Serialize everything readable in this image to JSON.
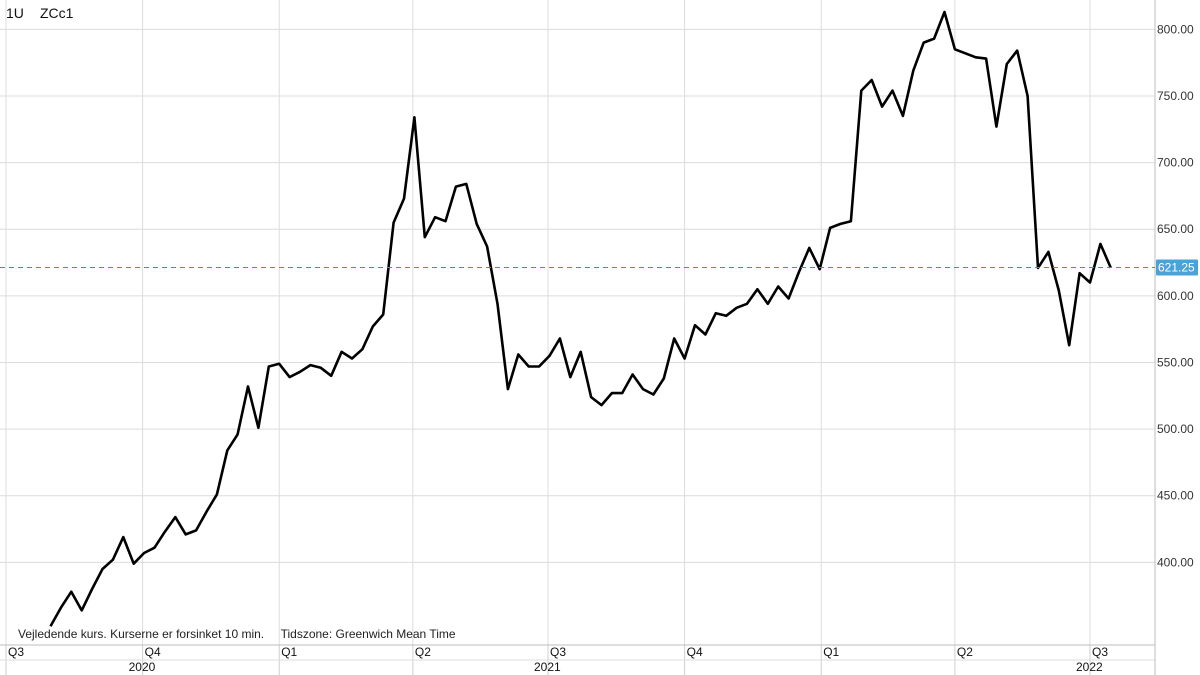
{
  "header": {
    "interval": "1U",
    "symbol": "ZCc1"
  },
  "footer": {
    "notice": "Vejledende kurs. Kurserne er forsinket 10 min.",
    "timezone": "Tidszone: Greenwich Mean Time"
  },
  "colors": {
    "line": "#000000",
    "grid": "#dcdcdc",
    "last_price_line": "#d9534f",
    "last_price_badge": "#4aa3d8"
  },
  "chart_data": {
    "type": "line",
    "symbol": "ZCc1",
    "x_start": "2020-07-31",
    "x_end": "2022-09-09",
    "x_interval": "1 week",
    "y_ticks": [
      400,
      450,
      500,
      550,
      600,
      650,
      700,
      750,
      800
    ],
    "y_tick_labels": [
      "400.00",
      "450.00",
      "500.00",
      "550.00",
      "600.00",
      "650.00",
      "700.00",
      "750.00",
      "800.00"
    ],
    "ylim": [
      338,
      822
    ],
    "last_price": 621.25,
    "last_price_label": "621.25",
    "quarter_ticks": [
      {
        "label": "Q3",
        "date": "2020-07-01"
      },
      {
        "label": "Q4",
        "date": "2020-10-01"
      },
      {
        "label": "Q1",
        "date": "2021-01-01"
      },
      {
        "label": "Q2",
        "date": "2021-04-01"
      },
      {
        "label": "Q3",
        "date": "2021-07-01"
      },
      {
        "label": "Q4",
        "date": "2021-10-01"
      },
      {
        "label": "Q1",
        "date": "2022-01-01"
      },
      {
        "label": "Q2",
        "date": "2022-04-01"
      },
      {
        "label": "Q3",
        "date": "2022-07-01"
      }
    ],
    "year_labels": [
      {
        "label": "2020",
        "date": "2020-10-01"
      },
      {
        "label": "2021",
        "date": "2021-07-01"
      },
      {
        "label": "2022",
        "date": "2022-07-01"
      }
    ],
    "grid": true,
    "legend": "none",
    "values": [
      352,
      366,
      378,
      364,
      380,
      395,
      402,
      419,
      399,
      407,
      411,
      423,
      434,
      421,
      424,
      438,
      451,
      484,
      496,
      532,
      501,
      547,
      549,
      539,
      543,
      548,
      546,
      540,
      558,
      553,
      560,
      577,
      586,
      655,
      673,
      734,
      644,
      659,
      656,
      682,
      684,
      654,
      637,
      594,
      530,
      556,
      547,
      547,
      555,
      568,
      539,
      558,
      524,
      518,
      527,
      527,
      541,
      530,
      526,
      538,
      568,
      553,
      578,
      571,
      587,
      585,
      591,
      594,
      605,
      594,
      607,
      598,
      618,
      636,
      620,
      651,
      654,
      656,
      754,
      762,
      742,
      754,
      735,
      769,
      790,
      793,
      813,
      785,
      782,
      779,
      778,
      727,
      774,
      784,
      750,
      621,
      633,
      604,
      563,
      617,
      610,
      639,
      621
    ]
  }
}
